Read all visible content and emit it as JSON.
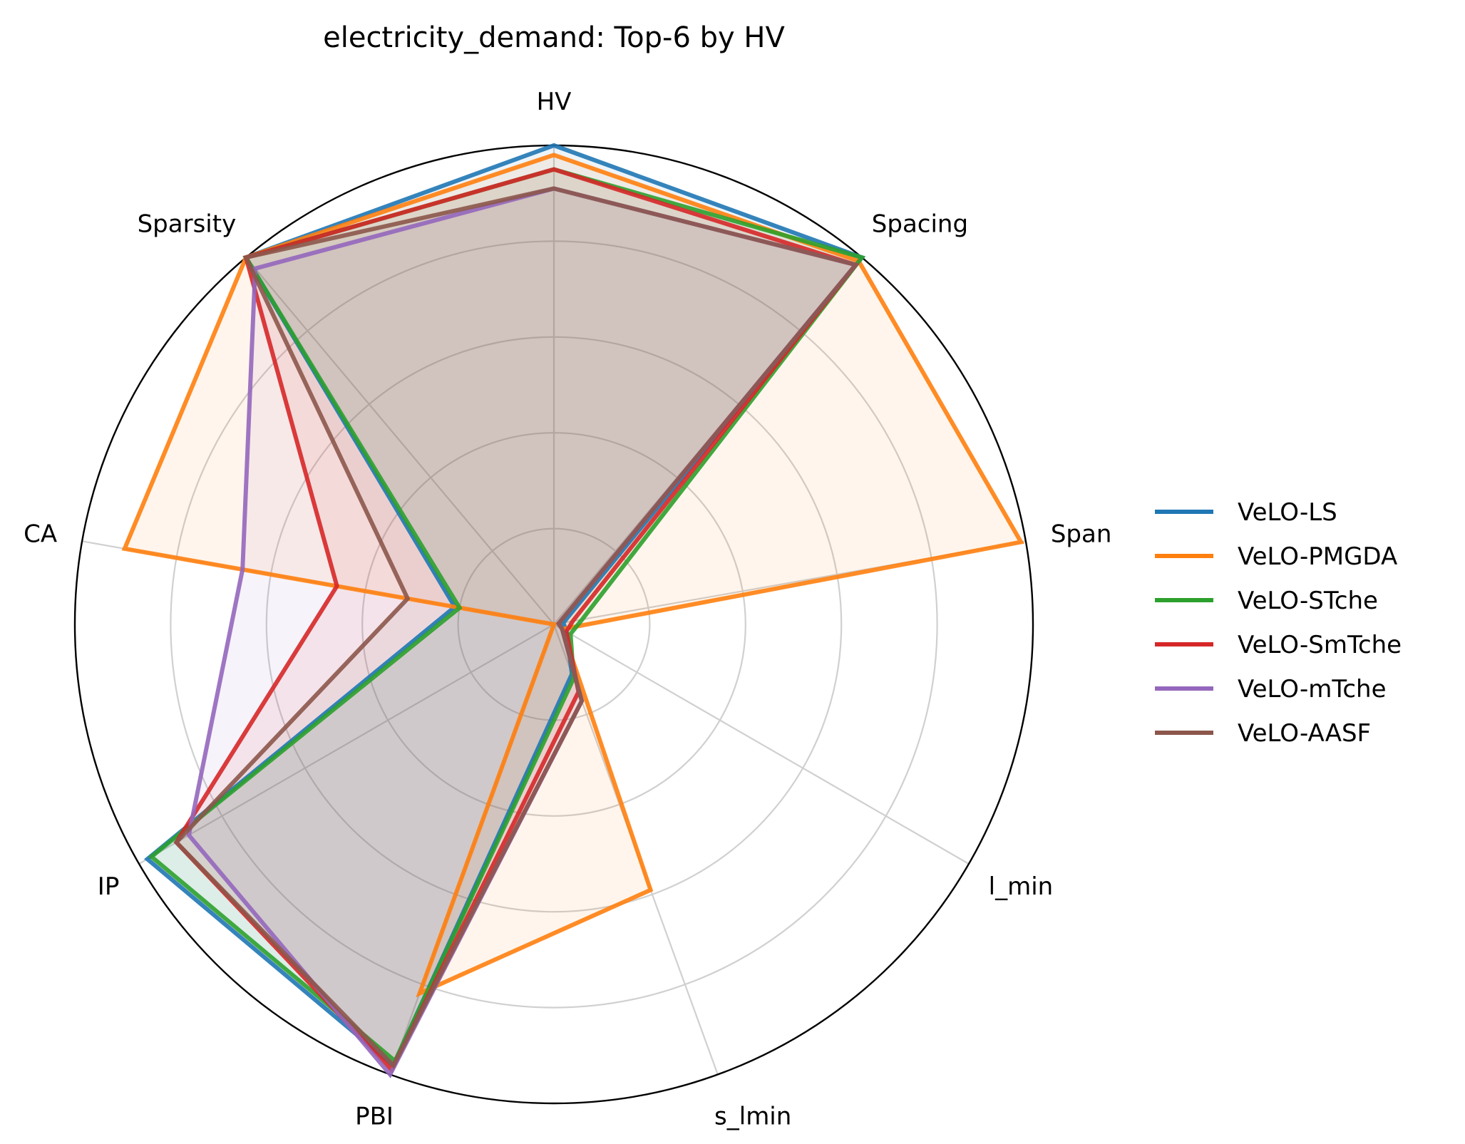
{
  "chart_data": {
    "type": "radar",
    "title": "electricity_demand: Top-6 by HV",
    "axes": [
      "HV",
      "Spacing",
      "Span",
      "l_min",
      "s_lmin",
      "PBI",
      "IP",
      "CA",
      "Sparsity"
    ],
    "rlim": [
      0,
      1
    ],
    "grid": true,
    "legend_position": "right",
    "series": [
      {
        "name": "VeLO-LS",
        "color": "#1f77b4",
        "values": [
          1.0,
          1.0,
          0.02,
          0.03,
          0.11,
          0.98,
          0.98,
          0.21,
          1.0
        ]
      },
      {
        "name": "VeLO-PMGDA",
        "color": "#ff7f0e",
        "values": [
          0.98,
          0.99,
          0.99,
          0.02,
          0.59,
          0.82,
          0.0,
          0.91,
          1.0
        ]
      },
      {
        "name": "VeLO-STche",
        "color": "#2ca02c",
        "values": [
          0.95,
          1.0,
          0.06,
          0.04,
          0.12,
          0.97,
          0.97,
          0.2,
          1.0
        ]
      },
      {
        "name": "VeLO-SmTche",
        "color": "#d62728",
        "values": [
          0.95,
          0.98,
          0.04,
          0.03,
          0.15,
          0.99,
          0.91,
          0.46,
          1.0
        ]
      },
      {
        "name": "VeLO-mTche",
        "color": "#9467bd",
        "values": [
          0.91,
          0.98,
          0.01,
          0.02,
          0.17,
          1.0,
          0.88,
          0.66,
          0.97
        ]
      },
      {
        "name": "VeLO-AASF",
        "color": "#8c564b",
        "values": [
          0.91,
          0.98,
          0.01,
          0.02,
          0.17,
          0.98,
          0.91,
          0.31,
          1.0
        ]
      }
    ]
  }
}
